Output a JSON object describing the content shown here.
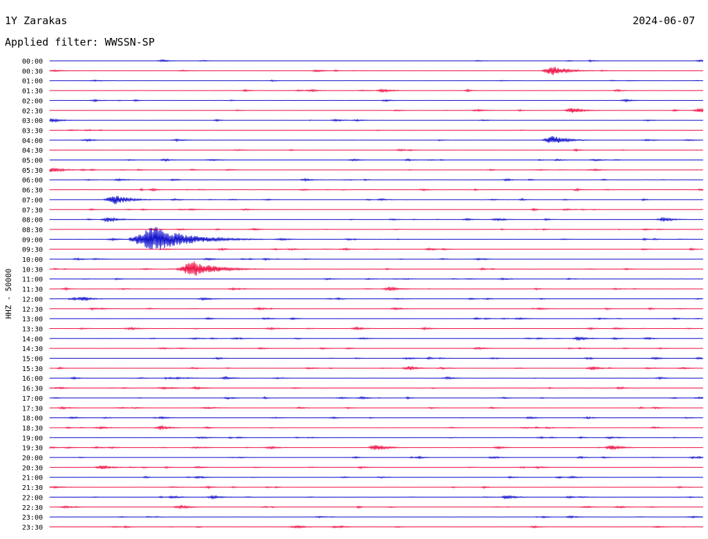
{
  "header": {
    "station": "1Y Zarakas",
    "date": "2024-06-07",
    "filter": "Applied filter: WWSSN-SP"
  },
  "chart_data": {
    "type": "line",
    "title": "1Y Zarakas",
    "date": "2024-06-07",
    "filter": "WWSSN-SP",
    "ylabel": "HHZ - 50000",
    "row_labels": [
      "00:00",
      "00:30",
      "01:00",
      "01:30",
      "02:00",
      "02:30",
      "03:00",
      "03:30",
      "04:00",
      "04:30",
      "05:00",
      "05:30",
      "06:00",
      "06:30",
      "07:00",
      "07:30",
      "08:00",
      "08:30",
      "09:00",
      "09:30",
      "10:00",
      "10:30",
      "11:00",
      "11:30",
      "12:00",
      "12:30",
      "13:00",
      "13:30",
      "14:00",
      "14:30",
      "15:00",
      "15:30",
      "16:00",
      "16:30",
      "17:00",
      "17:30",
      "18:00",
      "18:30",
      "19:00",
      "19:30",
      "20:00",
      "20:30",
      "21:00",
      "21:30",
      "22:00",
      "22:30",
      "23:00",
      "23:30"
    ],
    "colors": [
      "#1010cc",
      "#ee1144"
    ],
    "events": [
      {
        "row": 1,
        "x": 0.77,
        "amp": 0.95
      },
      {
        "row": 3,
        "x": 0.51,
        "amp": 0.35
      },
      {
        "row": 5,
        "x": 0.8,
        "amp": 0.55
      },
      {
        "row": 5,
        "x": 0.995,
        "amp": 0.45
      },
      {
        "row": 6,
        "x": 0.003,
        "amp": 0.4
      },
      {
        "row": 8,
        "x": 0.77,
        "amp": 0.9
      },
      {
        "row": 11,
        "x": 0.005,
        "amp": 0.55
      },
      {
        "row": 14,
        "x": 0.1,
        "amp": 0.95
      },
      {
        "row": 16,
        "x": 0.09,
        "amp": 0.55
      },
      {
        "row": 16,
        "x": 0.94,
        "amp": 0.45
      },
      {
        "row": 18,
        "x": 0.16,
        "amp": 2.8
      },
      {
        "row": 18,
        "x": 0.15,
        "amp": 0.8
      },
      {
        "row": 21,
        "x": 0.22,
        "amp": 1.7
      },
      {
        "row": 23,
        "x": 0.52,
        "amp": 0.45
      },
      {
        "row": 24,
        "x": 0.05,
        "amp": 0.45
      },
      {
        "row": 27,
        "x": 0.47,
        "amp": 0.3
      },
      {
        "row": 28,
        "x": 0.81,
        "amp": 0.4
      },
      {
        "row": 31,
        "x": 0.55,
        "amp": 0.45
      },
      {
        "row": 31,
        "x": 0.83,
        "amp": 0.35
      },
      {
        "row": 32,
        "x": 0.27,
        "amp": 0.3
      },
      {
        "row": 37,
        "x": 0.17,
        "amp": 0.4
      },
      {
        "row": 39,
        "x": 0.5,
        "amp": 0.6
      },
      {
        "row": 39,
        "x": 0.86,
        "amp": 0.5
      },
      {
        "row": 41,
        "x": 0.08,
        "amp": 0.45
      },
      {
        "row": 44,
        "x": 0.25,
        "amp": 0.35
      },
      {
        "row": 44,
        "x": 0.7,
        "amp": 0.4
      },
      {
        "row": 45,
        "x": 0.2,
        "amp": 0.4
      },
      {
        "row": 47,
        "x": 0.38,
        "amp": 0.3
      }
    ]
  }
}
